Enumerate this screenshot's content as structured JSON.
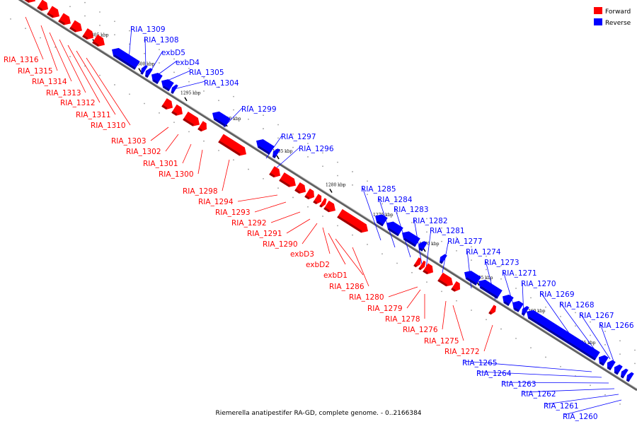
{
  "caption": "Riemerella anatipestifer RA-GD, complete genome. - 0..2166384",
  "legend": [
    {
      "label": "Forward",
      "color": "#ff0000"
    },
    {
      "label": "Reverse",
      "color": "#0000ff"
    }
  ],
  "colors": {
    "forward": "#ff0000",
    "reverse": "#0000ff",
    "forward_dark": "#a00000",
    "reverse_dark": "#0000a0",
    "backbone": "#808080"
  },
  "ticks": [
    "1305 kbp",
    "1300 kbp",
    "1295 kbp",
    "1290 kbp",
    "1285 kbp",
    "1280 kbp",
    "1275 kbp",
    "1270 kbp",
    "1265 kbp",
    "1260 kbp",
    "1255 kbp"
  ],
  "genes": [
    {
      "name": "RIA_1316",
      "strand": "+"
    },
    {
      "name": "RIA_1315",
      "strand": "+"
    },
    {
      "name": "RIA_1314",
      "strand": "+"
    },
    {
      "name": "RIA_1313",
      "strand": "+"
    },
    {
      "name": "RIA_1312",
      "strand": "+"
    },
    {
      "name": "RIA_1311",
      "strand": "+"
    },
    {
      "name": "RIA_1310",
      "strand": "+"
    },
    {
      "name": "RIA_1309",
      "strand": "-"
    },
    {
      "name": "RIA_1308",
      "strand": "-"
    },
    {
      "name": "exbD5",
      "strand": "-"
    },
    {
      "name": "exbD4",
      "strand": "-"
    },
    {
      "name": "RIA_1305",
      "strand": "-"
    },
    {
      "name": "RIA_1304",
      "strand": "-"
    },
    {
      "name": "RIA_1303",
      "strand": "+"
    },
    {
      "name": "RIA_1302",
      "strand": "+"
    },
    {
      "name": "RIA_1301",
      "strand": "+"
    },
    {
      "name": "RIA_1300",
      "strand": "+"
    },
    {
      "name": "RIA_1299",
      "strand": "-"
    },
    {
      "name": "RIA_1298",
      "strand": "+"
    },
    {
      "name": "RIA_1297",
      "strand": "-"
    },
    {
      "name": "RIA_1296",
      "strand": "-"
    },
    {
      "name": "RIA_1294",
      "strand": "+"
    },
    {
      "name": "RIA_1293",
      "strand": "+"
    },
    {
      "name": "RIA_1292",
      "strand": "+"
    },
    {
      "name": "RIA_1291",
      "strand": "+"
    },
    {
      "name": "RIA_1290",
      "strand": "+"
    },
    {
      "name": "exbD3",
      "strand": "+"
    },
    {
      "name": "exbD2",
      "strand": "+"
    },
    {
      "name": "exbD1",
      "strand": "+"
    },
    {
      "name": "RIA_1286",
      "strand": "+"
    },
    {
      "name": "RIA_1285",
      "strand": "-"
    },
    {
      "name": "RIA_1284",
      "strand": "-"
    },
    {
      "name": "RIA_1283",
      "strand": "-"
    },
    {
      "name": "RIA_1282",
      "strand": "-"
    },
    {
      "name": "RIA_1281",
      "strand": "-"
    },
    {
      "name": "RIA_1280",
      "strand": "+"
    },
    {
      "name": "RIA_1279",
      "strand": "+"
    },
    {
      "name": "RIA_1278",
      "strand": "+"
    },
    {
      "name": "RIA_1277",
      "strand": "-"
    },
    {
      "name": "RIA_1276",
      "strand": "+"
    },
    {
      "name": "RIA_1275",
      "strand": "+"
    },
    {
      "name": "RIA_1274",
      "strand": "-"
    },
    {
      "name": "RIA_1273",
      "strand": "-"
    },
    {
      "name": "RIA_1272",
      "strand": "+"
    },
    {
      "name": "RIA_1271",
      "strand": "-"
    },
    {
      "name": "RIA_1270",
      "strand": "-"
    },
    {
      "name": "RIA_1269",
      "strand": "-"
    },
    {
      "name": "RIA_1268",
      "strand": "-"
    },
    {
      "name": "RIA_1267",
      "strand": "-"
    },
    {
      "name": "RIA_1266",
      "strand": "-"
    },
    {
      "name": "RIA_1265",
      "strand": "-"
    },
    {
      "name": "RIA_1264",
      "strand": "-"
    },
    {
      "name": "RIA_1263",
      "strand": "-"
    },
    {
      "name": "RIA_1262",
      "strand": "-"
    },
    {
      "name": "RIA_1261",
      "strand": "-"
    },
    {
      "name": "RIA_1260",
      "strand": "-"
    }
  ]
}
